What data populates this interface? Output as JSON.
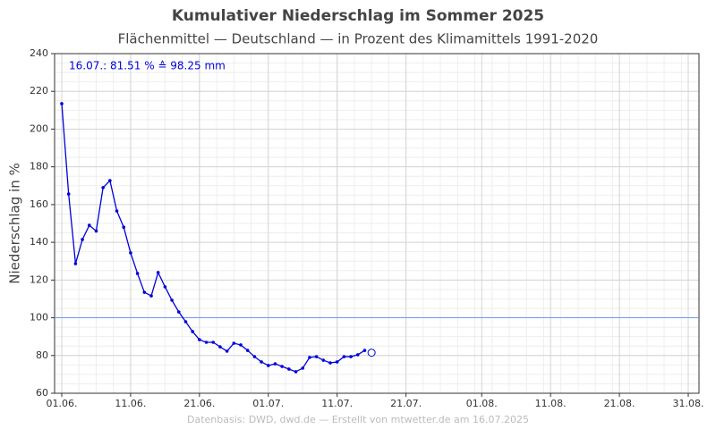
{
  "chart_data": {
    "type": "line",
    "title": "Kumulativer Niederschlag im Sommer 2025",
    "subtitle": "Flächenmittel — Deutschland — in Prozent des Klimamittels 1991-2020",
    "y_label": "Niederschlag in %",
    "annotation": "16.07.:  81.51 % ≙ 98.25 mm",
    "footer": "Datenbasis: DWD, dwd.de — Erstellt von mtwetter.de am 16.07.2025",
    "x": [
      "01.06.",
      "02.06.",
      "03.06.",
      "04.06.",
      "05.06.",
      "06.06.",
      "07.06.",
      "08.06.",
      "09.06.",
      "10.06.",
      "11.06.",
      "12.06.",
      "13.06.",
      "14.06.",
      "15.06.",
      "16.06.",
      "17.06.",
      "18.06.",
      "19.06.",
      "20.06.",
      "21.06.",
      "22.06.",
      "23.06.",
      "24.06.",
      "25.06.",
      "26.06.",
      "27.06.",
      "28.06.",
      "29.06.",
      "30.06.",
      "01.07.",
      "02.07.",
      "03.07.",
      "04.07.",
      "05.07.",
      "06.07.",
      "07.07.",
      "08.07.",
      "09.07.",
      "10.07.",
      "11.07.",
      "12.07.",
      "13.07.",
      "14.07.",
      "15.07."
    ],
    "series": [
      {
        "name": "Niederschlag",
        "color": "#0000dd",
        "values": [
          213.5,
          165.6,
          128.7,
          141.5,
          149,
          146,
          169,
          172.7,
          156.6,
          148,
          134.4,
          123.5,
          113.5,
          111.6,
          124,
          116.4,
          109.3,
          103.1,
          97.9,
          92.7,
          88.4,
          87,
          87,
          84.6,
          82.3,
          86.5,
          85.6,
          82.7,
          79.4,
          76.6,
          74.7,
          75.6,
          74.2,
          72.8,
          71.4,
          73.3,
          79,
          79.4,
          77.5,
          76.1,
          76.6,
          79.4,
          79.4,
          80.4,
          82.7
        ]
      }
    ],
    "current": {
      "x": "16.07.",
      "value": 81.51
    },
    "reference_line": {
      "value": 100,
      "color": "#6a9aee"
    },
    "xlim": [
      "01.06.",
      "31.08."
    ],
    "xticks": [
      "01.06.",
      "11.06.",
      "21.06.",
      "01.07.",
      "11.07.",
      "21.07.",
      "01.08.",
      "11.08.",
      "21.08.",
      "31.08."
    ],
    "ylim": [
      60,
      240
    ],
    "yticks": [
      60,
      80,
      100,
      120,
      140,
      160,
      180,
      200,
      220,
      240
    ],
    "grid": true
  }
}
